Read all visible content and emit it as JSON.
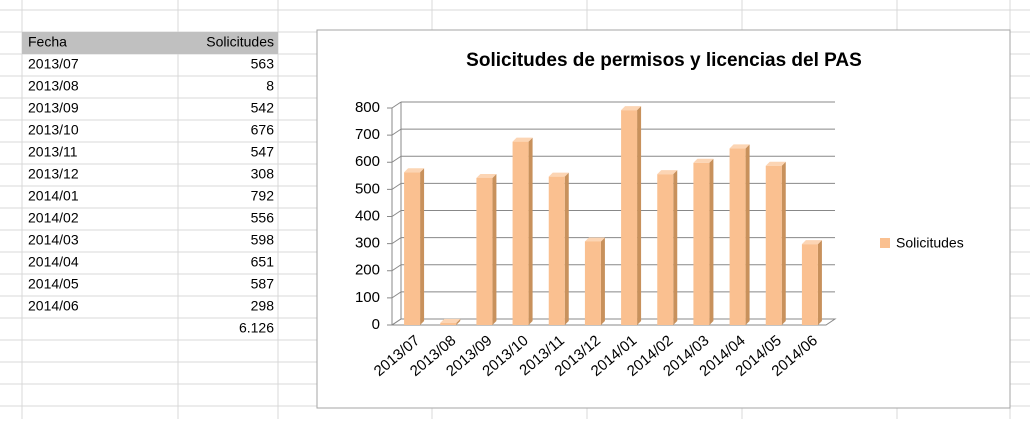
{
  "table": {
    "header": [
      "Fecha",
      "Solicitudes"
    ],
    "rows": [
      [
        "2013/07",
        563
      ],
      [
        "2013/08",
        8
      ],
      [
        "2013/09",
        542
      ],
      [
        "2013/10",
        676
      ],
      [
        "2013/11",
        547
      ],
      [
        "2013/12",
        308
      ],
      [
        "2014/01",
        792
      ],
      [
        "2014/02",
        556
      ],
      [
        "2014/03",
        598
      ],
      [
        "2014/04",
        651
      ],
      [
        "2014/05",
        587
      ],
      [
        "2014/06",
        298
      ]
    ],
    "total": "6.126"
  },
  "chart_data": {
    "type": "bar",
    "title": "Solicitudes de permisos y licencias del PAS",
    "categories": [
      "2013/07",
      "2013/08",
      "2013/09",
      "2013/10",
      "2013/11",
      "2013/12",
      "2014/01",
      "2014/02",
      "2014/03",
      "2014/04",
      "2014/05",
      "2014/06"
    ],
    "series": [
      {
        "name": "Solicitudes",
        "color": "#fac090",
        "values": [
          563,
          8,
          542,
          676,
          547,
          308,
          792,
          556,
          598,
          651,
          587,
          298
        ]
      }
    ],
    "ylim": [
      0,
      800
    ],
    "yticks": [
      0,
      100,
      200,
      300,
      400,
      500,
      600,
      700,
      800
    ],
    "grid": true,
    "legend": "right"
  }
}
